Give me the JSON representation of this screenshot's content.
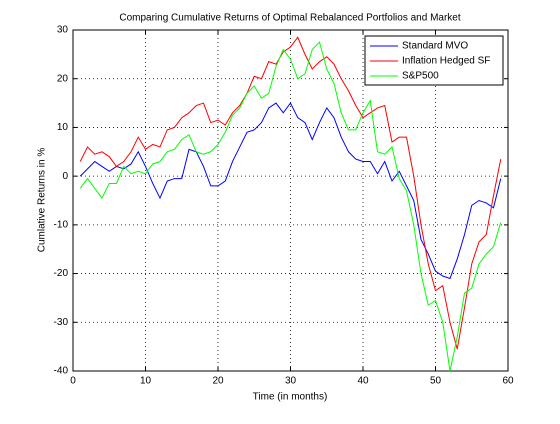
{
  "chart_data": {
    "type": "line",
    "title": "Comparing Cumulative Returns of Optimal Rebalanced Portfolios and Market",
    "x_label": "Time (in months)",
    "y_label": "Cumlative Returns in %",
    "x": [
      1,
      2,
      3,
      4,
      5,
      6,
      7,
      8,
      9,
      10,
      11,
      12,
      13,
      14,
      15,
      16,
      17,
      18,
      19,
      20,
      21,
      22,
      23,
      24,
      25,
      26,
      27,
      28,
      29,
      30,
      31,
      32,
      33,
      34,
      35,
      36,
      37,
      38,
      39,
      40,
      41,
      42,
      43,
      44,
      45,
      46,
      47,
      48,
      49,
      50,
      51,
      52,
      53,
      54,
      55,
      56,
      57,
      58,
      59
    ],
    "series": [
      {
        "name": "Standard MVO",
        "color": "#0000ff",
        "values": [
          0,
          1.5,
          3,
          2,
          1,
          2,
          1.5,
          2.5,
          5,
          2,
          -1.5,
          -4.5,
          -1,
          -0.5,
          -0.5,
          5.5,
          5,
          2,
          -2,
          -2,
          -1,
          3,
          6,
          9,
          9.5,
          11,
          14,
          15,
          13,
          15,
          12,
          11,
          7.5,
          11,
          14,
          12,
          8,
          5,
          3.5,
          3,
          3,
          0.5,
          3,
          -1,
          1,
          -2,
          -5,
          -13,
          -16,
          -19.5,
          -20.5,
          -21,
          -17,
          -12,
          -6,
          -5,
          -5.5,
          -6.5,
          -0.5
        ]
      },
      {
        "name": "Inflation Hedged SF",
        "color": "#ff0000",
        "values": [
          3,
          6,
          4.5,
          5,
          4,
          2,
          3,
          5,
          8,
          5.5,
          6.5,
          6,
          9.5,
          10,
          12,
          13,
          14.5,
          15,
          11,
          11.5,
          10.5,
          13,
          14.5,
          17,
          20.5,
          20,
          23.5,
          23,
          25.5,
          26.5,
          28.5,
          25,
          22,
          23.5,
          24.5,
          23,
          20,
          17.5,
          14.5,
          12,
          13,
          14,
          14.5,
          7,
          8,
          8,
          0,
          -10,
          -18,
          -23.5,
          -22.5,
          -30,
          -35.5,
          -27,
          -18,
          -13.5,
          -12,
          -4,
          3.5
        ]
      },
      {
        "name": "S&P500",
        "color": "#00ff00",
        "values": [
          -2.5,
          -0.5,
          -2.5,
          -4.5,
          -1.5,
          -1.5,
          2,
          0.5,
          1,
          0.5,
          2.5,
          3,
          5,
          5.5,
          7.5,
          8.5,
          5,
          4.5,
          5,
          6.5,
          9,
          12.5,
          14,
          17,
          18.5,
          16,
          17,
          22.5,
          26,
          24,
          20,
          21,
          26,
          27.5,
          22,
          19,
          13,
          9.5,
          9.5,
          13,
          15.5,
          5,
          4.5,
          6,
          -0.5,
          -3,
          -10,
          -20,
          -26.5,
          -25.5,
          -30,
          -40,
          -33,
          -24,
          -23,
          -18,
          -16,
          -14.5,
          -9.5
        ]
      }
    ],
    "xlim": [
      0,
      60
    ],
    "xticks": [
      0,
      10,
      20,
      30,
      40,
      50,
      60
    ],
    "ylim": [
      -40,
      30
    ],
    "yticks": [
      -40,
      -30,
      -20,
      -10,
      0,
      10,
      20,
      30
    ],
    "grid": true,
    "legend": "upper right"
  }
}
